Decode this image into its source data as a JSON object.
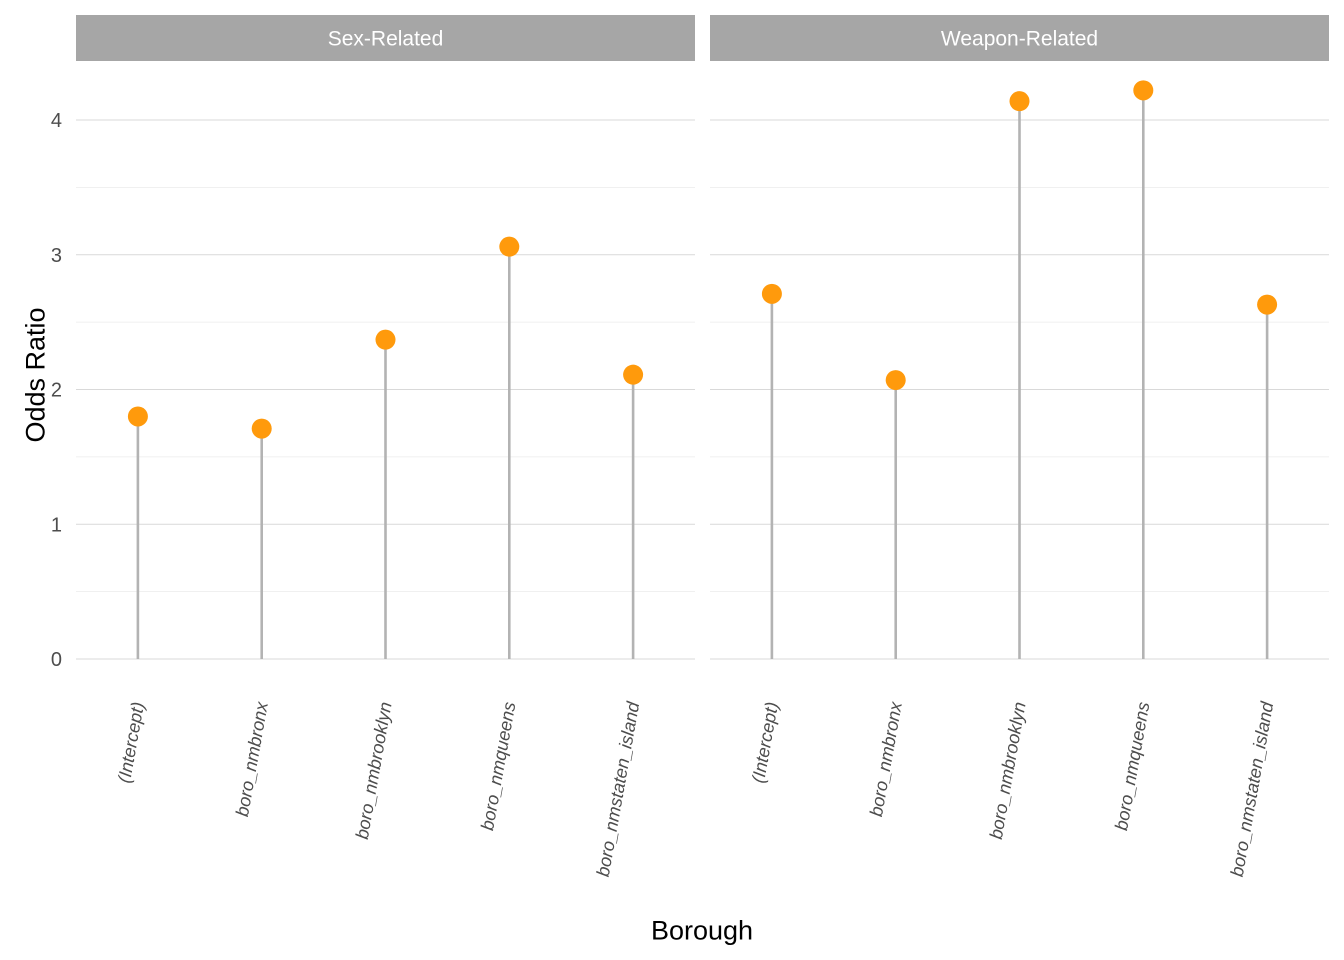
{
  "chart_data": {
    "type": "lollipop",
    "xlabel": "Borough",
    "ylabel": "Odds Ratio",
    "ylim": [
      0,
      4.4
    ],
    "y_ticks": [
      0,
      1,
      2,
      3,
      4
    ],
    "grid": true,
    "categories": [
      "(Intercept)",
      "boro_nmbronx",
      "boro_nmbrooklyn",
      "boro_nmqueens",
      "boro_nmstaten_island"
    ],
    "panels": [
      {
        "label": "Sex-Related",
        "values": [
          1.8,
          1.71,
          2.37,
          3.06,
          2.11
        ]
      },
      {
        "label": "Weapon-Related",
        "values": [
          2.71,
          2.07,
          4.14,
          4.22,
          2.63
        ]
      }
    ],
    "colors": {
      "point": "#ff9a0c",
      "stem": "#b3b3b3",
      "strip": "#a6a6a6"
    }
  }
}
